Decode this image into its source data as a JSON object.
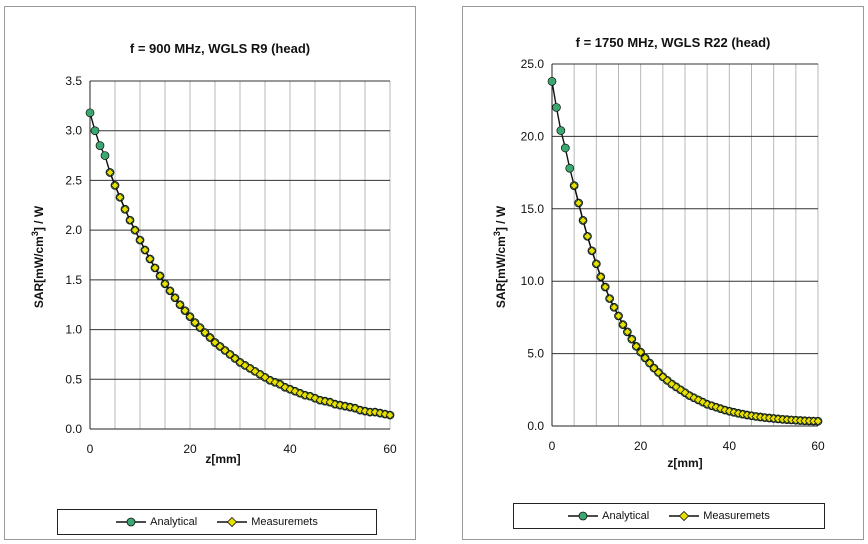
{
  "chart_data": [
    {
      "type": "line",
      "title": "f = 900 MHz, WGLS R9 (head)",
      "xlabel": "z[mm]",
      "ylabel_main": "SAR[mW/cm",
      "ylabel_sup": "3",
      "ylabel_tail": "] / W",
      "xlim": [
        0,
        60
      ],
      "ylim": [
        0,
        3.5
      ],
      "xticks": [
        "0",
        "20",
        "40",
        "60"
      ],
      "yticks": [
        "0.0",
        "0.5",
        "1.0",
        "1.5",
        "2.0",
        "2.5",
        "3.0",
        "3.5"
      ],
      "grid": "vertical every 5 mm, horizontal every 0.5",
      "legend_position": "bottom",
      "series": [
        {
          "name": "Analytical",
          "color": "#3aa870",
          "marker": "circle",
          "z0": 0,
          "dz": 1,
          "values": [
            3.18,
            3.0,
            2.85,
            2.75,
            2.58,
            2.45,
            2.33,
            2.21,
            2.1,
            2.0,
            1.9,
            1.8,
            1.71,
            1.62,
            1.54,
            1.46,
            1.39,
            1.32,
            1.25,
            1.19,
            1.13,
            1.07,
            1.02,
            0.97,
            0.92,
            0.87,
            0.83,
            0.79,
            0.75,
            0.71,
            0.67,
            0.64,
            0.61,
            0.58,
            0.55,
            0.52,
            0.49,
            0.47,
            0.45,
            0.42,
            0.4,
            0.38,
            0.36,
            0.34,
            0.33,
            0.31,
            0.29,
            0.28,
            0.27,
            0.25,
            0.24,
            0.23,
            0.22,
            0.21,
            0.19,
            0.18,
            0.17,
            0.17,
            0.16,
            0.15,
            0.14
          ]
        },
        {
          "name": "Measuremets",
          "color": "#e8e000",
          "marker": "diamond",
          "z0": 4,
          "dz": 1,
          "values": [
            2.58,
            2.45,
            2.33,
            2.21,
            2.1,
            2.0,
            1.9,
            1.8,
            1.71,
            1.62,
            1.54,
            1.46,
            1.39,
            1.32,
            1.25,
            1.19,
            1.13,
            1.07,
            1.02,
            0.97,
            0.92,
            0.87,
            0.83,
            0.79,
            0.75,
            0.71,
            0.67,
            0.64,
            0.61,
            0.58,
            0.55,
            0.52,
            0.49,
            0.47,
            0.45,
            0.42,
            0.4,
            0.38,
            0.36,
            0.34,
            0.33,
            0.31,
            0.29,
            0.28,
            0.27,
            0.25,
            0.24,
            0.23,
            0.22,
            0.21,
            0.19,
            0.18,
            0.17,
            0.17,
            0.16,
            0.15,
            0.14
          ]
        }
      ]
    },
    {
      "type": "line",
      "title": "f = 1750 MHz, WGLS R22 (head)",
      "xlabel": "z[mm]",
      "ylabel_main": "SAR[mW/cm",
      "ylabel_sup": "3",
      "ylabel_tail": "] / W",
      "xlim": [
        0,
        60
      ],
      "ylim": [
        0,
        25
      ],
      "xticks": [
        "0",
        "20",
        "40",
        "60"
      ],
      "yticks": [
        "0.0",
        "5.0",
        "10.0",
        "15.0",
        "20.0",
        "25.0"
      ],
      "grid": "vertical every 5 mm, horizontal every 5.0",
      "legend_position": "bottom",
      "series": [
        {
          "name": "Analytical",
          "color": "#3aa870",
          "marker": "circle",
          "z0": 0,
          "dz": 1,
          "values": [
            23.8,
            22.0,
            20.4,
            19.2,
            17.8,
            16.6,
            15.4,
            14.2,
            13.1,
            12.1,
            11.2,
            10.3,
            9.6,
            8.8,
            8.2,
            7.6,
            7.0,
            6.5,
            6.0,
            5.5,
            5.1,
            4.7,
            4.35,
            4.0,
            3.7,
            3.4,
            3.15,
            2.9,
            2.7,
            2.5,
            2.3,
            2.1,
            1.95,
            1.8,
            1.65,
            1.5,
            1.4,
            1.3,
            1.2,
            1.1,
            1.02,
            0.95,
            0.88,
            0.82,
            0.76,
            0.71,
            0.66,
            0.62,
            0.58,
            0.55,
            0.52,
            0.49,
            0.46,
            0.44,
            0.42,
            0.4,
            0.38,
            0.36,
            0.35,
            0.34,
            0.33
          ]
        },
        {
          "name": "Measuremets",
          "color": "#e8e000",
          "marker": "diamond",
          "z0": 5,
          "dz": 1,
          "values": [
            16.6,
            15.4,
            14.2,
            13.1,
            12.1,
            11.2,
            10.3,
            9.6,
            8.8,
            8.2,
            7.6,
            7.0,
            6.5,
            6.0,
            5.5,
            5.1,
            4.7,
            4.35,
            4.0,
            3.7,
            3.4,
            3.15,
            2.9,
            2.7,
            2.5,
            2.3,
            2.1,
            1.95,
            1.8,
            1.65,
            1.5,
            1.4,
            1.3,
            1.2,
            1.1,
            1.02,
            0.95,
            0.88,
            0.82,
            0.76,
            0.71,
            0.66,
            0.62,
            0.58,
            0.55,
            0.52,
            0.49,
            0.46,
            0.44,
            0.42,
            0.4,
            0.38,
            0.36,
            0.35,
            0.34,
            0.33
          ]
        }
      ]
    }
  ]
}
